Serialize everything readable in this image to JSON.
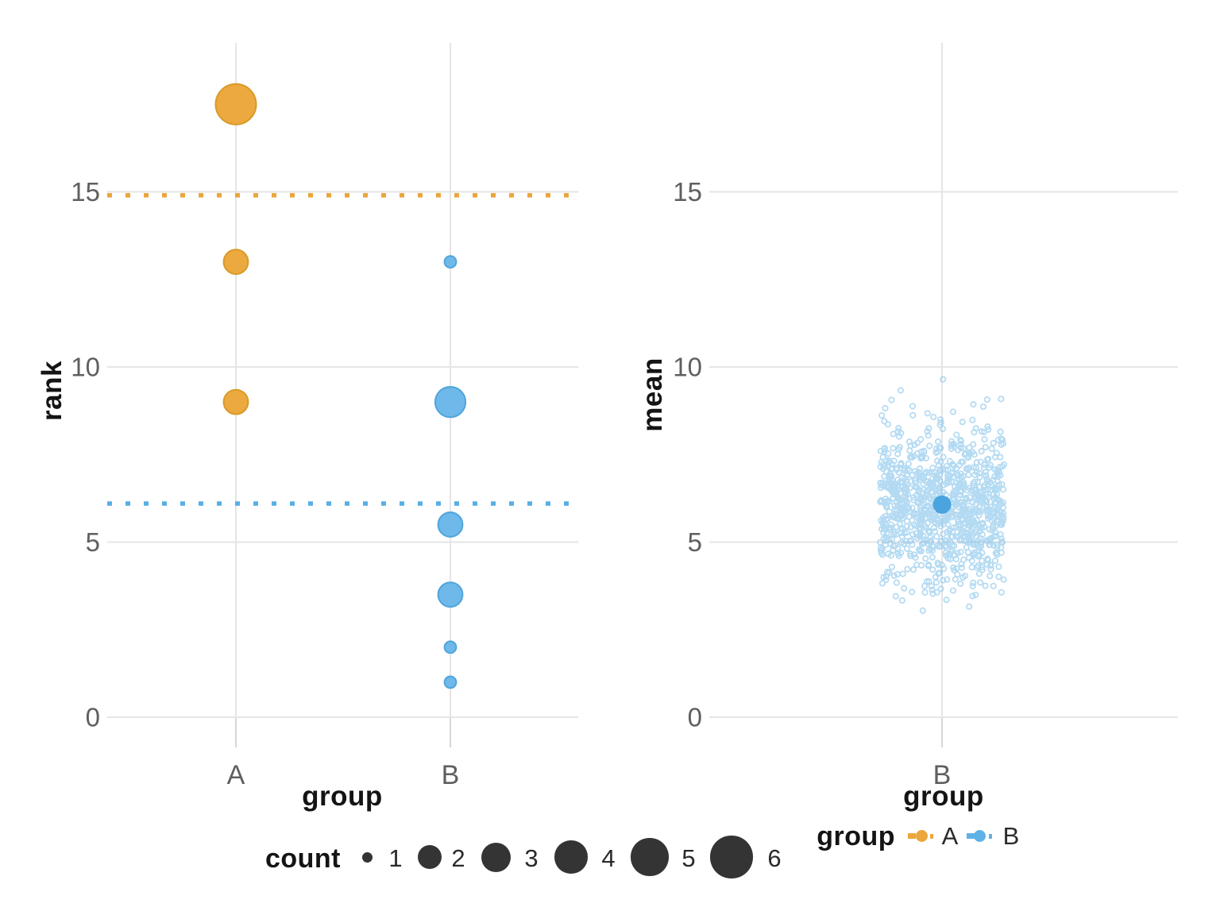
{
  "chart_data": [
    {
      "id": "rank-vs-group-bubble",
      "type": "scatter",
      "subtype": "count-bubble",
      "title": "",
      "xlabel": "group",
      "ylabel": "rank",
      "categories": [
        "A",
        "B"
      ],
      "yticks": [
        0,
        5,
        10,
        15
      ],
      "ylim": [
        0,
        19.3
      ],
      "grid": true,
      "series": [
        {
          "name": "A",
          "color": "#EBA93F",
          "stroke": "#D89A28",
          "mean_rank": 14.9,
          "points": [
            {
              "rank": 17.5,
              "count": 6
            },
            {
              "rank": 13,
              "count": 2
            },
            {
              "rank": 9,
              "count": 2
            }
          ]
        },
        {
          "name": "B",
          "color": "#6EB9E9",
          "stroke": "#4FA5DC",
          "mean_rank": 6.1,
          "points": [
            {
              "rank": 13,
              "count": 1
            },
            {
              "rank": 9,
              "count": 3
            },
            {
              "rank": 5.5,
              "count": 2
            },
            {
              "rank": 3.5,
              "count": 2
            },
            {
              "rank": 2,
              "count": 1
            },
            {
              "rank": 1,
              "count": 1
            }
          ]
        }
      ],
      "mean_lines": [
        {
          "group": "A",
          "value": 14.9,
          "style": "dotted",
          "color": "#E9A63B"
        },
        {
          "group": "B",
          "value": 6.1,
          "style": "dotted",
          "color": "#57AEE5"
        }
      ]
    },
    {
      "id": "mean-vs-group-jitter",
      "type": "scatter",
      "subtype": "jitter-cloud",
      "title": "",
      "xlabel": "group",
      "ylabel": "mean",
      "categories": [
        "B"
      ],
      "yticks": [
        0,
        5,
        10,
        15
      ],
      "ylim": [
        0,
        19.3
      ],
      "grid": true,
      "cloud": {
        "group": "B",
        "n_points": 1000,
        "mean": 6.05,
        "sd": 1.1,
        "min": 2.9,
        "max": 9.7,
        "color": "#76BCE9"
      },
      "mean_point": {
        "group": "B",
        "value": 6.07,
        "color": "#49A4E0"
      }
    }
  ],
  "legends": {
    "count": {
      "title": "count",
      "values": [
        1,
        2,
        3,
        4,
        5,
        6
      ],
      "swatch_color": "#343434"
    },
    "group": {
      "title": "group",
      "items": [
        {
          "label": "A",
          "color": "#EBA73C"
        },
        {
          "label": "B",
          "color": "#5FB2E6"
        }
      ]
    }
  }
}
